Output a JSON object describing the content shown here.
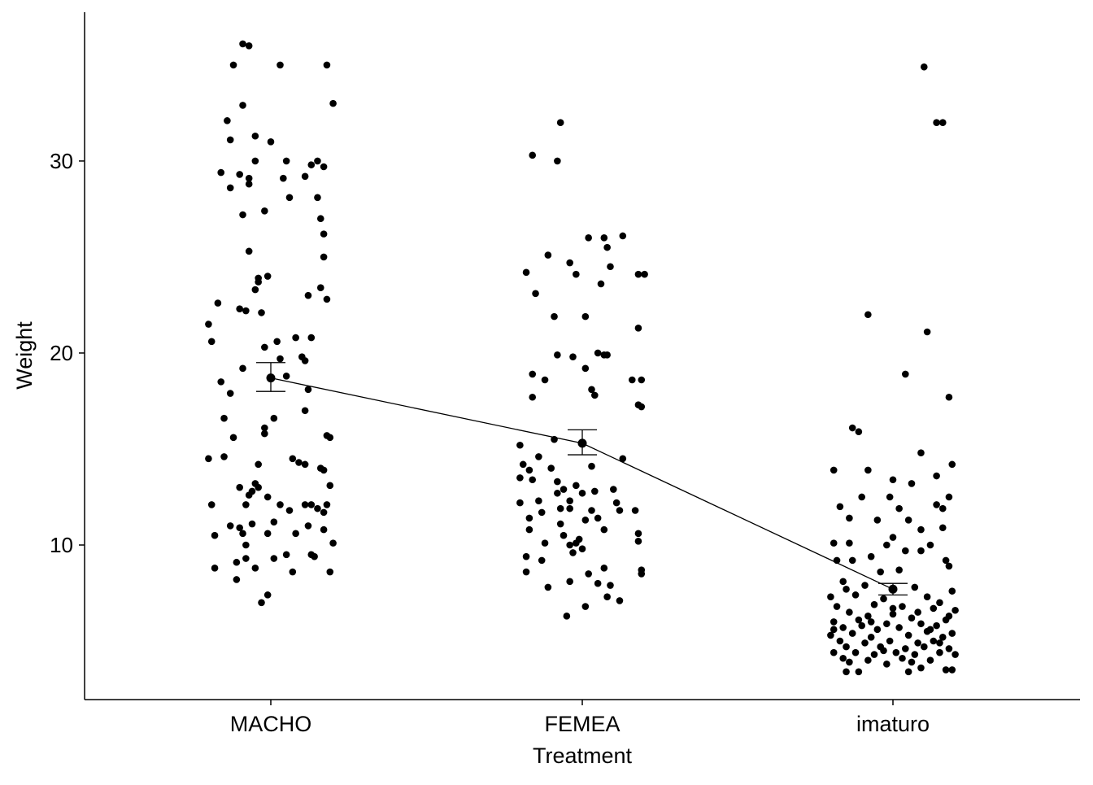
{
  "chart_data": {
    "type": "scatter",
    "title": "",
    "xlabel": "Treatment",
    "ylabel": "Weight",
    "ylim": [
      1.95,
      37.75
    ],
    "yticks": [
      10,
      20,
      30
    ],
    "categories": [
      "MACHO",
      "FEMEA",
      "imaturo"
    ],
    "grid": false,
    "point_color": "#000000",
    "summary": [
      {
        "category": "MACHO",
        "mean": 18.7,
        "lower": 18.0,
        "upper": 19.5
      },
      {
        "category": "FEMEA",
        "mean": 15.3,
        "lower": 14.7,
        "upper": 16.0
      },
      {
        "category": "imaturo",
        "mean": 7.7,
        "lower": 7.4,
        "upper": 8.0
      }
    ],
    "points": {
      "MACHO": [
        [
          -0.09,
          36.1
        ],
        [
          -0.07,
          36.0
        ],
        [
          -0.12,
          35.0
        ],
        [
          0.03,
          35.0
        ],
        [
          0.18,
          35.0
        ],
        [
          0.2,
          33.0
        ],
        [
          -0.09,
          32.9
        ],
        [
          -0.14,
          32.1
        ],
        [
          -0.13,
          31.1
        ],
        [
          -0.05,
          31.3
        ],
        [
          0,
          31.0
        ],
        [
          -0.05,
          30.0
        ],
        [
          0.05,
          30.0
        ],
        [
          0.15,
          30.0
        ],
        [
          0.13,
          29.8
        ],
        [
          0.17,
          29.7
        ],
        [
          -0.16,
          29.4
        ],
        [
          -0.1,
          29.3
        ],
        [
          -0.07,
          29.1
        ],
        [
          0.04,
          29.1
        ],
        [
          0.11,
          29.2
        ],
        [
          -0.13,
          28.6
        ],
        [
          -0.07,
          28.8
        ],
        [
          0.06,
          28.1
        ],
        [
          0.15,
          28.1
        ],
        [
          0.16,
          27.0
        ],
        [
          -0.09,
          27.2
        ],
        [
          -0.02,
          27.4
        ],
        [
          0.17,
          26.2
        ],
        [
          -0.07,
          25.3
        ],
        [
          0.17,
          25.0
        ],
        [
          -0.01,
          24.0
        ],
        [
          -0.04,
          23.7
        ],
        [
          -0.04,
          23.9
        ],
        [
          -0.05,
          23.3
        ],
        [
          0.16,
          23.4
        ],
        [
          0.12,
          23.0
        ],
        [
          0.18,
          22.8
        ],
        [
          -0.17,
          22.6
        ],
        [
          -0.1,
          22.3
        ],
        [
          -0.08,
          22.2
        ],
        [
          -0.03,
          22.1
        ],
        [
          -0.2,
          21.5
        ],
        [
          -0.19,
          20.6
        ],
        [
          0.08,
          20.8
        ],
        [
          0.13,
          20.8
        ],
        [
          0.02,
          20.6
        ],
        [
          -0.02,
          20.3
        ],
        [
          0.03,
          19.7
        ],
        [
          0.1,
          19.8
        ],
        [
          0.11,
          19.6
        ],
        [
          -0.09,
          19.2
        ],
        [
          -0.16,
          18.5
        ],
        [
          0.05,
          18.8
        ],
        [
          -0.13,
          17.9
        ],
        [
          0.12,
          18.1
        ],
        [
          0.11,
          17.0
        ],
        [
          -0.15,
          16.6
        ],
        [
          0.01,
          16.6
        ],
        [
          -0.02,
          16.1
        ],
        [
          -0.12,
          15.6
        ],
        [
          -0.02,
          15.8
        ],
        [
          0.18,
          15.7
        ],
        [
          0.19,
          15.6
        ],
        [
          -0.2,
          14.5
        ],
        [
          -0.15,
          14.6
        ],
        [
          0.07,
          14.5
        ],
        [
          0.09,
          14.3
        ],
        [
          0.11,
          14.2
        ],
        [
          -0.04,
          14.2
        ],
        [
          0.16,
          14.0
        ],
        [
          0.17,
          13.9
        ],
        [
          -0.05,
          13.2
        ],
        [
          -0.1,
          13.0
        ],
        [
          -0.04,
          13.0
        ],
        [
          0.19,
          13.1
        ],
        [
          -0.07,
          12.6
        ],
        [
          -0.06,
          12.8
        ],
        [
          -0.01,
          12.5
        ],
        [
          -0.19,
          12.1
        ],
        [
          -0.08,
          12.1
        ],
        [
          0.03,
          12.1
        ],
        [
          0.11,
          12.1
        ],
        [
          0.13,
          12.1
        ],
        [
          0.18,
          12.1
        ],
        [
          0.06,
          11.8
        ],
        [
          0.15,
          11.9
        ],
        [
          0.17,
          11.7
        ],
        [
          0.01,
          11.2
        ],
        [
          0.12,
          11.0
        ],
        [
          -0.06,
          11.1
        ],
        [
          -0.13,
          11.0
        ],
        [
          -0.1,
          10.9
        ],
        [
          -0.09,
          10.6
        ],
        [
          -0.18,
          10.5
        ],
        [
          -0.01,
          10.6
        ],
        [
          0.08,
          10.6
        ],
        [
          0.2,
          10.1
        ],
        [
          0.17,
          10.8
        ],
        [
          -0.08,
          10.0
        ],
        [
          -0.08,
          9.3
        ],
        [
          -0.11,
          9.1
        ],
        [
          0.05,
          9.5
        ],
        [
          0.13,
          9.5
        ],
        [
          0.01,
          9.3
        ],
        [
          0.14,
          9.4
        ],
        [
          -0.18,
          8.8
        ],
        [
          -0.05,
          8.8
        ],
        [
          0.07,
          8.6
        ],
        [
          0.19,
          8.6
        ],
        [
          -0.11,
          8.2
        ],
        [
          -0.01,
          7.4
        ],
        [
          -0.03,
          7.0
        ]
      ],
      "FEMEA": [
        [
          -0.07,
          32.0
        ],
        [
          -0.16,
          30.3
        ],
        [
          -0.08,
          30.0
        ],
        [
          0.02,
          26.0
        ],
        [
          0.07,
          26.0
        ],
        [
          0.08,
          25.5
        ],
        [
          0.13,
          26.1
        ],
        [
          -0.11,
          25.1
        ],
        [
          -0.04,
          24.7
        ],
        [
          0.09,
          24.5
        ],
        [
          -0.18,
          24.2
        ],
        [
          -0.02,
          24.1
        ],
        [
          0.18,
          24.1
        ],
        [
          0.2,
          24.1
        ],
        [
          0.06,
          23.6
        ],
        [
          -0.15,
          23.1
        ],
        [
          -0.09,
          21.9
        ],
        [
          0.01,
          21.9
        ],
        [
          0.18,
          21.3
        ],
        [
          0.05,
          20.0
        ],
        [
          0.08,
          19.9
        ],
        [
          -0.08,
          19.9
        ],
        [
          -0.03,
          19.8
        ],
        [
          0.07,
          19.9
        ],
        [
          0.01,
          19.2
        ],
        [
          -0.16,
          18.9
        ],
        [
          -0.12,
          18.6
        ],
        [
          0.16,
          18.6
        ],
        [
          0.19,
          18.6
        ],
        [
          0.03,
          18.1
        ],
        [
          0.04,
          17.8
        ],
        [
          -0.16,
          17.7
        ],
        [
          0.18,
          17.3
        ],
        [
          0.19,
          17.2
        ],
        [
          -0.09,
          15.5
        ],
        [
          -0.2,
          15.2
        ],
        [
          0.13,
          14.5
        ],
        [
          -0.14,
          14.6
        ],
        [
          -0.19,
          14.2
        ],
        [
          -0.17,
          13.9
        ],
        [
          0.03,
          14.1
        ],
        [
          -0.1,
          14.0
        ],
        [
          -0.2,
          13.5
        ],
        [
          -0.16,
          13.4
        ],
        [
          -0.08,
          13.3
        ],
        [
          -0.02,
          13.1
        ],
        [
          -0.06,
          12.9
        ],
        [
          0.1,
          12.9
        ],
        [
          0.04,
          12.8
        ],
        [
          -0.08,
          12.7
        ],
        [
          0,
          12.7
        ],
        [
          -0.14,
          12.3
        ],
        [
          -0.04,
          12.3
        ],
        [
          -0.2,
          12.2
        ],
        [
          0.11,
          12.2
        ],
        [
          -0.07,
          11.9
        ],
        [
          -0.04,
          11.9
        ],
        [
          0.03,
          11.8
        ],
        [
          0.12,
          11.8
        ],
        [
          0.17,
          11.8
        ],
        [
          -0.13,
          11.7
        ],
        [
          0.05,
          11.4
        ],
        [
          -0.17,
          11.4
        ],
        [
          0.01,
          11.3
        ],
        [
          -0.07,
          11.1
        ],
        [
          0.07,
          10.8
        ],
        [
          -0.17,
          10.8
        ],
        [
          0.18,
          10.6
        ],
        [
          -0.06,
          10.5
        ],
        [
          -0.01,
          10.3
        ],
        [
          0.18,
          10.2
        ],
        [
          -0.02,
          10.1
        ],
        [
          -0.12,
          10.1
        ],
        [
          -0.04,
          10.0
        ],
        [
          0,
          9.8
        ],
        [
          -0.03,
          9.6
        ],
        [
          -0.18,
          9.4
        ],
        [
          -0.13,
          9.2
        ],
        [
          0.07,
          8.8
        ],
        [
          0.19,
          8.7
        ],
        [
          -0.18,
          8.6
        ],
        [
          0.19,
          8.5
        ],
        [
          0.02,
          8.5
        ],
        [
          -0.04,
          8.1
        ],
        [
          0.05,
          8.0
        ],
        [
          -0.11,
          7.8
        ],
        [
          0.09,
          7.9
        ],
        [
          0.08,
          7.3
        ],
        [
          0.12,
          7.1
        ],
        [
          0.01,
          6.8
        ],
        [
          -0.05,
          6.3
        ]
      ],
      "imaturo": [
        [
          0.1,
          34.9
        ],
        [
          0.14,
          32.0
        ],
        [
          0.16,
          32.0
        ],
        [
          -0.08,
          22.0
        ],
        [
          0.11,
          21.1
        ],
        [
          0.04,
          18.9
        ],
        [
          0.18,
          17.7
        ],
        [
          -0.13,
          16.1
        ],
        [
          -0.11,
          15.9
        ],
        [
          0.09,
          14.8
        ],
        [
          0.19,
          14.2
        ],
        [
          -0.19,
          13.9
        ],
        [
          -0.08,
          13.9
        ],
        [
          0.14,
          13.6
        ],
        [
          0,
          13.4
        ],
        [
          0.06,
          13.2
        ],
        [
          0.18,
          12.5
        ],
        [
          -0.1,
          12.5
        ],
        [
          -0.01,
          12.5
        ],
        [
          -0.17,
          12.0
        ],
        [
          0.02,
          11.9
        ],
        [
          0.14,
          12.1
        ],
        [
          0.16,
          11.9
        ],
        [
          -0.14,
          11.4
        ],
        [
          -0.05,
          11.3
        ],
        [
          0.05,
          11.3
        ],
        [
          0.16,
          10.9
        ],
        [
          0.09,
          10.8
        ],
        [
          0,
          10.4
        ],
        [
          -0.19,
          10.1
        ],
        [
          -0.14,
          10.1
        ],
        [
          -0.02,
          10.0
        ],
        [
          0.12,
          10.0
        ],
        [
          0.04,
          9.7
        ],
        [
          -0.07,
          9.4
        ],
        [
          0.09,
          9.7
        ],
        [
          0.17,
          9.2
        ],
        [
          -0.13,
          9.2
        ],
        [
          -0.18,
          9.2
        ],
        [
          0.02,
          8.7
        ],
        [
          -0.04,
          8.6
        ],
        [
          0.18,
          8.9
        ],
        [
          -0.16,
          8.1
        ],
        [
          -0.09,
          7.9
        ],
        [
          0.07,
          7.8
        ],
        [
          0.19,
          7.6
        ],
        [
          -0.2,
          7.3
        ],
        [
          -0.12,
          7.4
        ],
        [
          -0.03,
          7.2
        ],
        [
          0.11,
          7.3
        ],
        [
          0.15,
          7.0
        ],
        [
          -0.18,
          6.8
        ],
        [
          -0.06,
          6.9
        ],
        [
          0.03,
          6.8
        ],
        [
          0.13,
          6.7
        ],
        [
          0.2,
          6.6
        ],
        [
          -0.14,
          6.5
        ],
        [
          -0.08,
          6.3
        ],
        [
          0,
          6.4
        ],
        [
          0.06,
          6.2
        ],
        [
          0.17,
          6.1
        ],
        [
          -0.19,
          6.0
        ],
        [
          -0.11,
          6.1
        ],
        [
          -0.02,
          5.9
        ],
        [
          0.09,
          5.9
        ],
        [
          0.14,
          5.8
        ],
        [
          -0.16,
          5.7
        ],
        [
          -0.05,
          5.6
        ],
        [
          0.02,
          5.7
        ],
        [
          0.11,
          5.5
        ],
        [
          0.19,
          5.4
        ],
        [
          -0.2,
          5.3
        ],
        [
          -0.13,
          5.4
        ],
        [
          -0.07,
          5.2
        ],
        [
          0.05,
          5.3
        ],
        [
          0.16,
          5.2
        ],
        [
          -0.17,
          5.0
        ],
        [
          -0.09,
          4.9
        ],
        [
          -0.01,
          5.0
        ],
        [
          0.08,
          4.9
        ],
        [
          0.13,
          5.0
        ],
        [
          -0.15,
          4.7
        ],
        [
          -0.04,
          4.7
        ],
        [
          0.04,
          4.6
        ],
        [
          0.1,
          4.7
        ],
        [
          0.18,
          4.6
        ],
        [
          -0.19,
          4.4
        ],
        [
          -0.12,
          4.4
        ],
        [
          -0.06,
          4.3
        ],
        [
          0.01,
          4.4
        ],
        [
          0.07,
          4.3
        ],
        [
          0.15,
          4.4
        ],
        [
          0.2,
          4.3
        ],
        [
          -0.16,
          4.1
        ],
        [
          -0.08,
          4.0
        ],
        [
          0.03,
          4.1
        ],
        [
          0.12,
          4.0
        ],
        [
          -0.14,
          3.9
        ],
        [
          -0.02,
          3.8
        ],
        [
          0.06,
          3.9
        ],
        [
          0.17,
          3.5
        ],
        [
          0.19,
          3.5
        ],
        [
          -0.11,
          3.4
        ],
        [
          -0.15,
          3.4
        ],
        [
          0.05,
          3.4
        ],
        [
          0.09,
          3.6
        ],
        [
          -0.19,
          5.6
        ],
        [
          -0.1,
          5.8
        ],
        [
          0.0,
          6.7
        ],
        [
          0.08,
          6.5
        ],
        [
          -0.15,
          7.7
        ],
        [
          0.12,
          5.6
        ],
        [
          -0.03,
          4.5
        ],
        [
          0.15,
          4.9
        ],
        [
          -0.07,
          6.0
        ],
        [
          0.18,
          6.3
        ]
      ]
    }
  }
}
